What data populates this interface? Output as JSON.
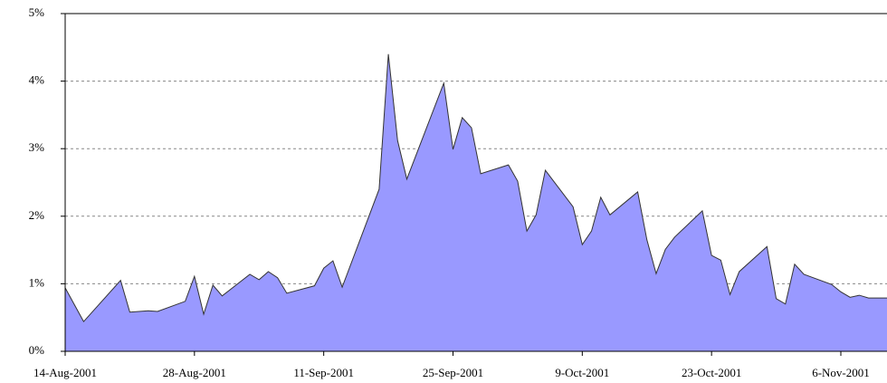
{
  "chart_data": {
    "type": "area",
    "x": [
      "14-Aug-2001",
      "16-Aug-2001",
      "20-Aug-2001",
      "21-Aug-2001",
      "23-Aug-2001",
      "24-Aug-2001",
      "27-Aug-2001",
      "28-Aug-2001",
      "29-Aug-2001",
      "30-Aug-2001",
      "31-Aug-2001",
      "3-Sep-2001",
      "4-Sep-2001",
      "5-Sep-2001",
      "6-Sep-2001",
      "7-Sep-2001",
      "10-Sep-2001",
      "11-Sep-2001",
      "12-Sep-2001",
      "13-Sep-2001",
      "17-Sep-2001",
      "18-Sep-2001",
      "19-Sep-2001",
      "20-Sep-2001",
      "24-Sep-2001",
      "25-Sep-2001",
      "26-Sep-2001",
      "27-Sep-2001",
      "28-Sep-2001",
      "1-Oct-2001",
      "2-Oct-2001",
      "3-Oct-2001",
      "4-Oct-2001",
      "5-Oct-2001",
      "8-Oct-2001",
      "9-Oct-2001",
      "10-Oct-2001",
      "11-Oct-2001",
      "12-Oct-2001",
      "15-Oct-2001",
      "16-Oct-2001",
      "17-Oct-2001",
      "18-Oct-2001",
      "19-Oct-2001",
      "22-Oct-2001",
      "23-Oct-2001",
      "24-Oct-2001",
      "25-Oct-2001",
      "26-Oct-2001",
      "29-Oct-2001",
      "30-Oct-2001",
      "31-Oct-2001",
      "1-Nov-2001",
      "2-Nov-2001",
      "5-Nov-2001",
      "6-Nov-2001",
      "7-Nov-2001",
      "8-Nov-2001",
      "9-Nov-2001",
      "11-Nov-2001"
    ],
    "values": [
      0.94,
      0.44,
      1.05,
      0.58,
      0.6,
      0.59,
      0.74,
      1.11,
      0.55,
      0.98,
      0.82,
      1.14,
      1.06,
      1.18,
      1.09,
      0.86,
      0.97,
      1.23,
      1.34,
      0.95,
      2.4,
      4.4,
      3.12,
      2.55,
      3.97,
      2.99,
      3.46,
      3.31,
      2.63,
      2.76,
      2.52,
      1.78,
      2.02,
      2.68,
      2.14,
      1.58,
      1.78,
      2.28,
      2.02,
      2.36,
      1.65,
      1.15,
      1.51,
      1.69,
      2.08,
      1.42,
      1.35,
      0.84,
      1.18,
      1.55,
      0.78,
      0.7,
      1.29,
      1.14,
      0.99,
      0.88,
      0.8,
      0.83,
      0.79,
      0.79
    ],
    "color": "#9999ff",
    "line_color": "#333333",
    "xlim": [
      "14-Aug-2001",
      "11-Nov-2001"
    ],
    "xticks": [
      "14-Aug-2001",
      "28-Aug-2001",
      "11-Sep-2001",
      "25-Sep-2001",
      "9-Oct-2001",
      "23-Oct-2001",
      "6-Nov-2001"
    ],
    "ylim": [
      0,
      5
    ],
    "yticks": [
      {
        "value": 0,
        "label": "0%"
      },
      {
        "value": 1,
        "label": "1%"
      },
      {
        "value": 2,
        "label": "2%"
      },
      {
        "value": 3,
        "label": "3%"
      },
      {
        "value": 4,
        "label": "4%"
      },
      {
        "value": 5,
        "label": "5%"
      }
    ],
    "grid": true
  }
}
